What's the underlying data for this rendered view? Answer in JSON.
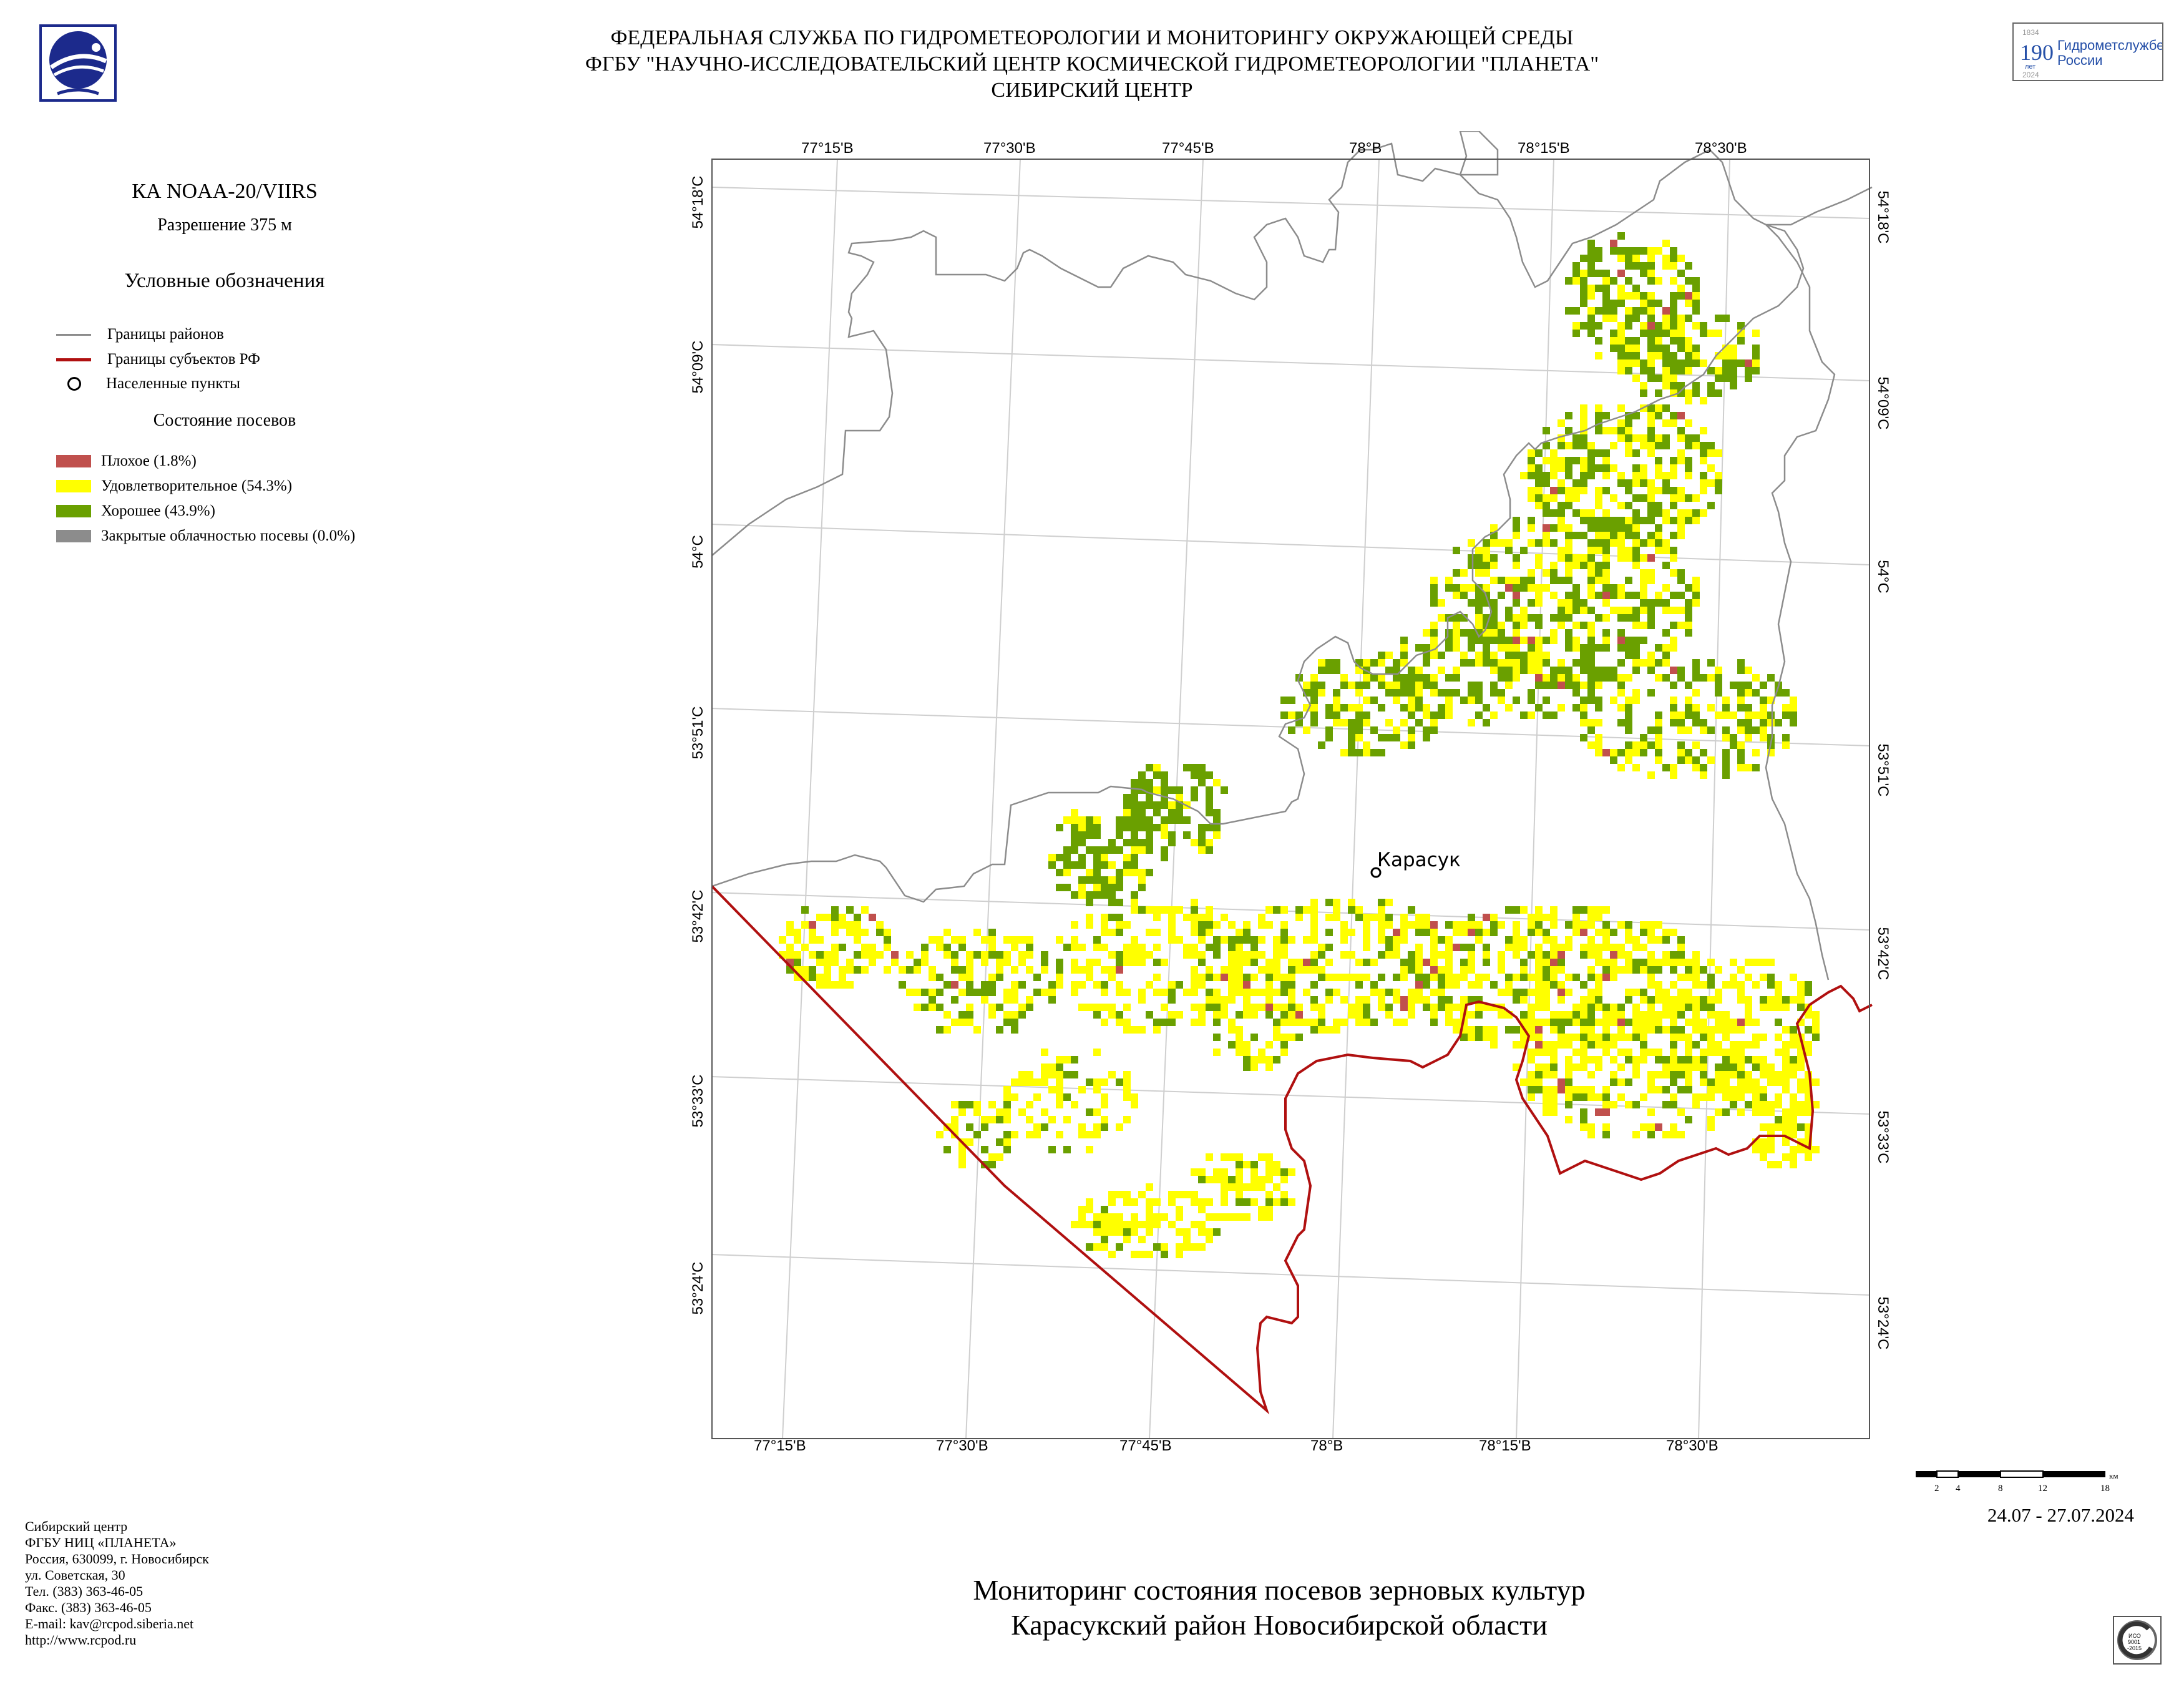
{
  "header": {
    "line1": "ФЕДЕРАЛЬНАЯ СЛУЖБА ПО ГИДРОМЕТЕОРОЛОГИИ И МОНИТОРИНГУ ОКРУЖАЮЩЕЙ СРЕДЫ",
    "line2": "ФГБУ \"НАУЧНО-ИССЛЕДОВАТЕЛЬСКИЙ ЦЕНТР КОСМИЧЕСКОЙ ГИДРОМЕТЕОРОЛОГИИ \"ПЛАНЕТА\"",
    "line3": "СИБИРСКИЙ ЦЕНТР"
  },
  "anniversary_logo": {
    "years_top": "1834",
    "number": "190",
    "unit": "лет",
    "years_bottom": "2024",
    "text1": "Гидрометслужбе",
    "text2": "России"
  },
  "satellite": "КА NOAA-20/VIIRS",
  "resolution": "Разрешение 375 м",
  "legend": {
    "title": "Условные обозначения",
    "district_borders": "Границы районов",
    "region_borders": "Границы субъектов РФ",
    "settlements": "Населенные пункты",
    "crop_state_title": "Состояние посевов",
    "classes": [
      {
        "label": "Плохое (1.8%)",
        "color": "#c0504d"
      },
      {
        "label": "Удовлетворительное (54.3%)",
        "color": "#ffff00"
      },
      {
        "label": "Хорошее (43.9%)",
        "color": "#6aa000"
      },
      {
        "label": "Закрытые облачностью посевы (0.0%)",
        "color": "#8c8c8c"
      }
    ]
  },
  "map": {
    "top_ticks": [
      "77°15'В",
      "77°30'В",
      "77°45'В",
      "78°В",
      "78°15'В",
      "78°30'В"
    ],
    "bottom_ticks": [
      "77°15'В",
      "77°30'В",
      "77°45'В",
      "78°В",
      "78°15'В",
      "78°30'В"
    ],
    "left_ticks": [
      "54°18'С",
      "54°09'С",
      "54°С",
      "53°51'С",
      "53°42'С",
      "53°33'С",
      "53°24'С"
    ],
    "right_ticks": [
      "54°18'С",
      "54°09'С",
      "54°С",
      "53°51'С",
      "53°42'С",
      "53°33'С",
      "53°24'С"
    ],
    "town": "Карасук"
  },
  "scale_bar": {
    "labels": [
      "2",
      "4",
      "8",
      "12",
      "18"
    ],
    "unit": "км"
  },
  "dates": "24.07 - 27.07.2024",
  "footer": [
    "Сибирский центр",
    "ФГБУ НИЦ «ПЛАНЕТА»",
    "Россия, 630099, г. Новосибирск",
    "ул. Советская, 30",
    "Тел. (383) 363-46-05",
    "Факс. (383) 363-46-05",
    "E-mail: kav@rcpod.siberia.net",
    "http://www.rcpod.ru"
  ],
  "main_title": {
    "line1": "Мониторинг состояния посевов зерновых культур",
    "line2": "Карасукский район Новосибирской области"
  },
  "iso_badge": {
    "line1": "ИСО",
    "line2": "9001",
    "line3": "-2015"
  }
}
